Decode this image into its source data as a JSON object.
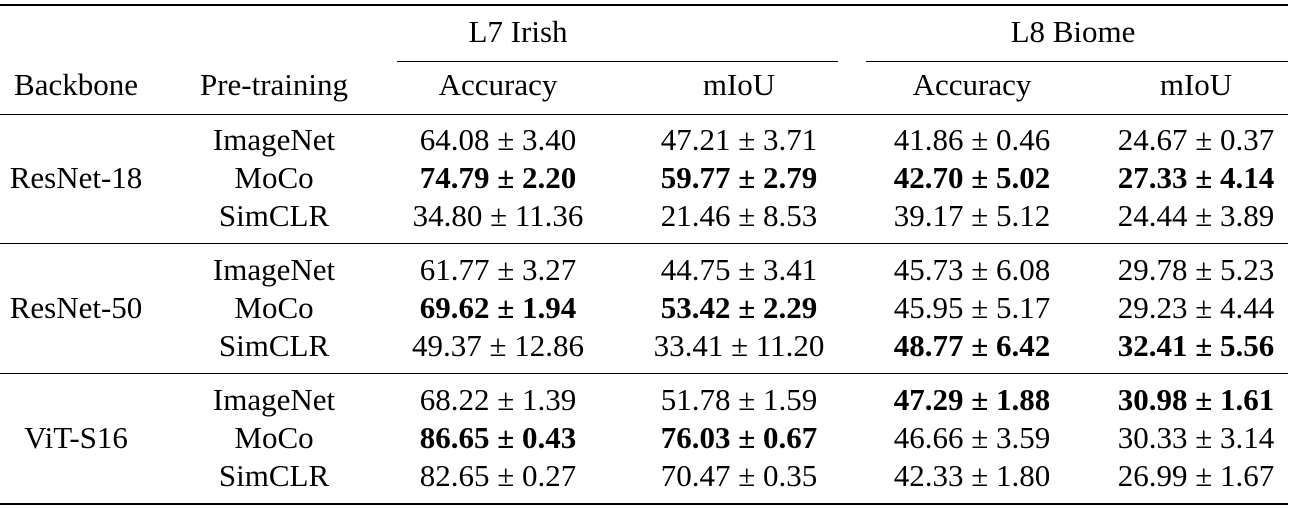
{
  "headers": {
    "backbone": "Backbone",
    "pretraining": "Pre-training",
    "groups": [
      "L7 Irish",
      "L8 Biome"
    ],
    "metrics": [
      "Accuracy",
      "mIoU",
      "Accuracy",
      "mIoU"
    ]
  },
  "blocks": [
    {
      "backbone": "ResNet-18",
      "rows": [
        {
          "pretraining": "ImageNet",
          "values": [
            "64.08 ± 3.40",
            "47.21 ± 3.71",
            "41.86 ± 0.46",
            "24.67 ± 0.37"
          ],
          "bold": [
            false,
            false,
            false,
            false
          ]
        },
        {
          "pretraining": "MoCo",
          "values": [
            "74.79 ± 2.20",
            "59.77 ± 2.79",
            "42.70 ± 5.02",
            "27.33 ± 4.14"
          ],
          "bold": [
            true,
            true,
            true,
            true
          ]
        },
        {
          "pretraining": "SimCLR",
          "values": [
            "34.80 ± 11.36",
            "21.46 ± 8.53",
            "39.17 ± 5.12",
            "24.44 ± 3.89"
          ],
          "bold": [
            false,
            false,
            false,
            false
          ]
        }
      ]
    },
    {
      "backbone": "ResNet-50",
      "rows": [
        {
          "pretraining": "ImageNet",
          "values": [
            "61.77 ± 3.27",
            "44.75 ± 3.41",
            "45.73 ± 6.08",
            "29.78 ± 5.23"
          ],
          "bold": [
            false,
            false,
            false,
            false
          ]
        },
        {
          "pretraining": "MoCo",
          "values": [
            "69.62 ± 1.94",
            "53.42 ± 2.29",
            "45.95 ± 5.17",
            "29.23 ± 4.44"
          ],
          "bold": [
            true,
            true,
            false,
            false
          ]
        },
        {
          "pretraining": "SimCLR",
          "values": [
            "49.37 ± 12.86",
            "33.41 ± 11.20",
            "48.77 ± 6.42",
            "32.41 ± 5.56"
          ],
          "bold": [
            false,
            false,
            true,
            true
          ]
        }
      ]
    },
    {
      "backbone": "ViT-S16",
      "rows": [
        {
          "pretraining": "ImageNet",
          "values": [
            "68.22 ± 1.39",
            "51.78 ± 1.59",
            "47.29 ± 1.88",
            "30.98 ± 1.61"
          ],
          "bold": [
            false,
            false,
            true,
            true
          ]
        },
        {
          "pretraining": "MoCo",
          "values": [
            "86.65 ± 0.43",
            "76.03 ± 0.67",
            "46.66 ± 3.59",
            "30.33 ± 3.14"
          ],
          "bold": [
            true,
            true,
            false,
            false
          ]
        },
        {
          "pretraining": "SimCLR",
          "values": [
            "82.65 ± 0.27",
            "70.47 ± 0.35",
            "42.33 ± 1.80",
            "26.99 ± 1.67"
          ],
          "bold": [
            false,
            false,
            false,
            false
          ]
        }
      ]
    }
  ]
}
